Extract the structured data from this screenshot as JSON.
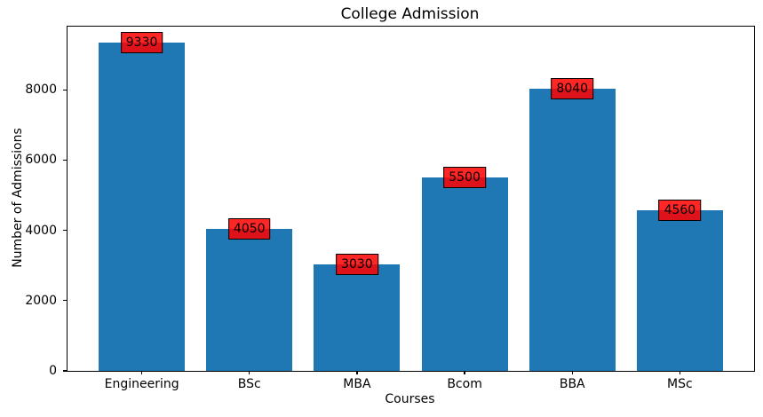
{
  "chart_data": {
    "type": "bar",
    "title": "College Admission",
    "xlabel": "Courses",
    "ylabel": "Number of Admissions",
    "categories": [
      "Engineering",
      "BSc",
      "MBA",
      "Bcom",
      "BBA",
      "MSc"
    ],
    "values": [
      9330,
      4050,
      3030,
      5500,
      8040,
      4560
    ],
    "yticks": [
      0,
      2000,
      4000,
      6000,
      8000
    ],
    "ylim": [
      0,
      9796
    ],
    "xlim": [
      -0.69,
      5.69
    ],
    "bar_width": 0.8,
    "grid": false,
    "legend_position": "none",
    "colors": {
      "bar_fill": "#1f77b4",
      "label_box_fill": "rgba(255,0,0,0.85)",
      "label_box_border": "#000000",
      "axis": "#000000",
      "text": "#000000",
      "background": "#ffffff"
    }
  }
}
